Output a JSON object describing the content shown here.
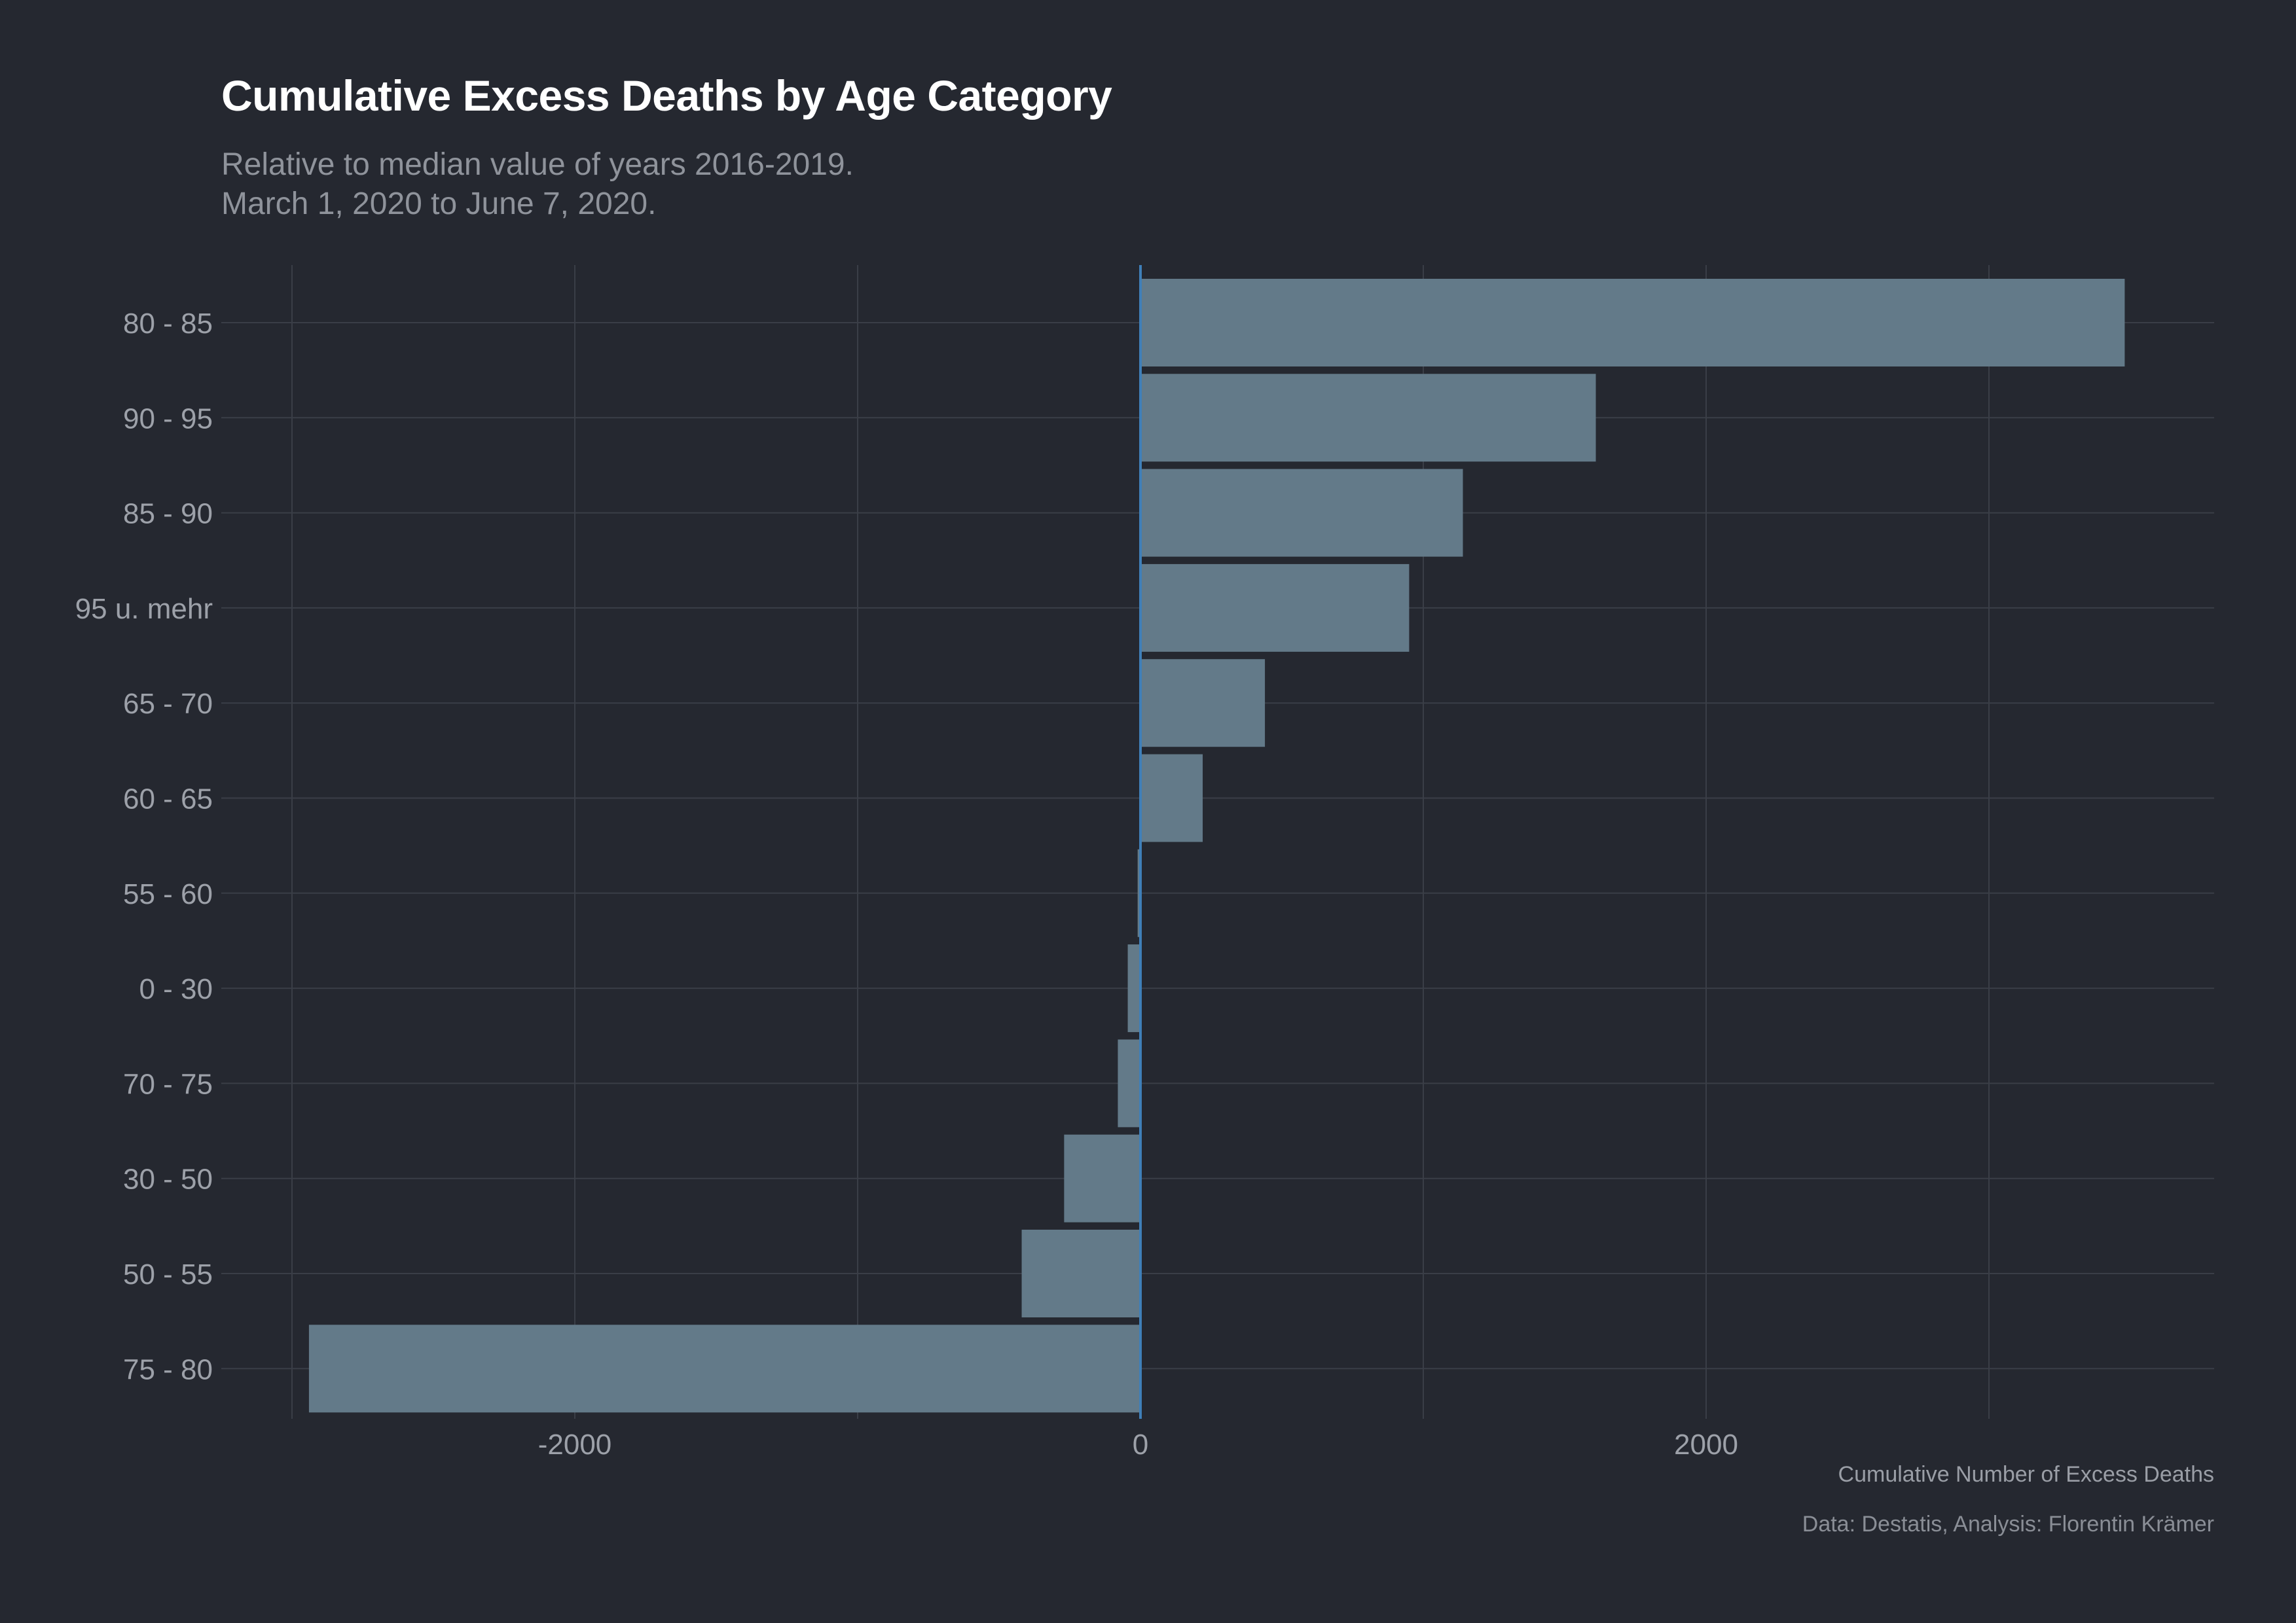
{
  "chart_data": {
    "type": "bar",
    "orientation": "horizontal",
    "title": "Cumulative Excess Deaths by Age Category",
    "subtitle_lines": [
      "Relative to median value of years 2016-2019.",
      "March 1, 2020 to June 7, 2020."
    ],
    "xlabel": "Cumulative Number of Excess Deaths",
    "caption": "Data: Destatis, Analysis: Florentin Krämer",
    "categories": [
      "80 - 85",
      "90 - 95",
      "85 - 90",
      "95 u. mehr",
      "65 - 70",
      "60 - 65",
      "55 - 60",
      "0 - 30",
      "70 - 75",
      "30 - 50",
      "50 - 55",
      "75 - 80"
    ],
    "values": [
      3480,
      1610,
      1140,
      950,
      440,
      220,
      -10,
      -45,
      -80,
      -270,
      -420,
      -2940
    ],
    "xlim": [
      -3000,
      3800
    ],
    "xticks": [
      -2000,
      0,
      2000
    ],
    "xtick_labels": [
      "-2000",
      "0",
      "2000"
    ],
    "grid": true,
    "zero_line": true,
    "colors": {
      "background": "#252830",
      "bar": "#637a89",
      "grid": "#3a3e47",
      "zero_line": "#3f7fb8",
      "tick_text": "#9da1a9"
    }
  }
}
